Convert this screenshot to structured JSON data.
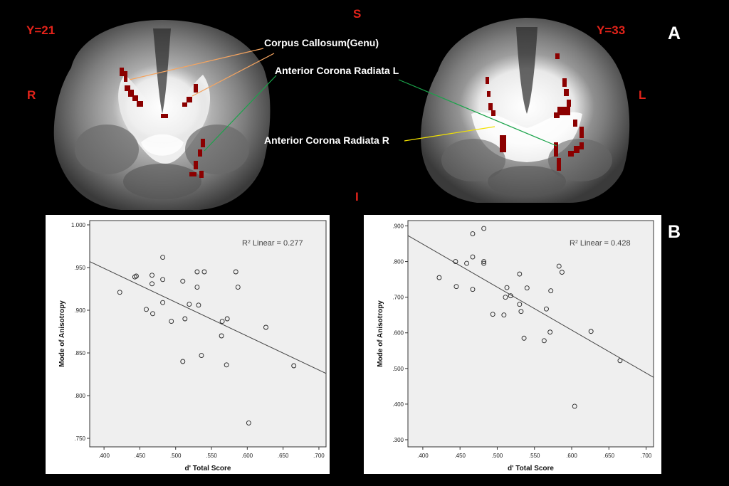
{
  "mri": {
    "y_left": "Y=21",
    "y_right": "Y=33",
    "superior": "S",
    "inferior": "I",
    "right": "R",
    "left": "L",
    "panel_a": "A",
    "panel_b": "B",
    "annotations": [
      "Corpus Callosum(Genu)",
      "Anterior Corona Radiata L",
      "Anterior Corona Radiata R"
    ]
  },
  "chart_data": [
    {
      "type": "scatter",
      "xlabel": "d' Total Score",
      "ylabel": "Mode of Anisotropy",
      "xlim": [
        0.38,
        0.71
      ],
      "ylim": [
        0.74,
        1.005
      ],
      "xticks": [
        ".400",
        ".450",
        ".500",
        ".550",
        ".600",
        ".650",
        ".700"
      ],
      "xtick_values": [
        0.4,
        0.45,
        0.5,
        0.55,
        0.6,
        0.65,
        0.7
      ],
      "yticks": [
        "1.000",
        ".950",
        ".900",
        ".850",
        ".800",
        ".750"
      ],
      "ytick_values": [
        1.0,
        0.95,
        0.9,
        0.85,
        0.8,
        0.75
      ],
      "r2_label": "R",
      "r2_text": " Linear = 0.277",
      "fit": {
        "x1": 0.38,
        "y1": 0.957,
        "x2": 0.71,
        "y2": 0.826
      },
      "points": [
        [
          0.422,
          0.921
        ],
        [
          0.443,
          0.939
        ],
        [
          0.445,
          0.94
        ],
        [
          0.459,
          0.901
        ],
        [
          0.467,
          0.941
        ],
        [
          0.467,
          0.931
        ],
        [
          0.468,
          0.896
        ],
        [
          0.482,
          0.962
        ],
        [
          0.482,
          0.936
        ],
        [
          0.482,
          0.909
        ],
        [
          0.494,
          0.887
        ],
        [
          0.51,
          0.934
        ],
        [
          0.51,
          0.84
        ],
        [
          0.513,
          0.89
        ],
        [
          0.519,
          0.907
        ],
        [
          0.53,
          0.945
        ],
        [
          0.53,
          0.927
        ],
        [
          0.532,
          0.906
        ],
        [
          0.536,
          0.847
        ],
        [
          0.54,
          0.945
        ],
        [
          0.564,
          0.87
        ],
        [
          0.565,
          0.887
        ],
        [
          0.571,
          0.836
        ],
        [
          0.572,
          0.89
        ],
        [
          0.584,
          0.945
        ],
        [
          0.587,
          0.927
        ],
        [
          0.602,
          0.768
        ],
        [
          0.626,
          0.88
        ],
        [
          0.665,
          0.835
        ]
      ]
    },
    {
      "type": "scatter",
      "xlabel": "d' Total Score",
      "ylabel": "Mode of Anisotropy",
      "xlim": [
        0.38,
        0.71
      ],
      "ylim": [
        0.28,
        0.915
      ],
      "xticks": [
        ".400",
        ".450",
        ".500",
        ".550",
        ".600",
        ".650",
        ".700"
      ],
      "xtick_values": [
        0.4,
        0.45,
        0.5,
        0.55,
        0.6,
        0.65,
        0.7
      ],
      "yticks": [
        ".900",
        ".800",
        ".700",
        ".600",
        ".500",
        ".400",
        ".300"
      ],
      "ytick_values": [
        0.9,
        0.8,
        0.7,
        0.6,
        0.5,
        0.4,
        0.3
      ],
      "r2_label": "R",
      "r2_text": " Linear = 0.428",
      "fit": {
        "x1": 0.38,
        "y1": 0.873,
        "x2": 0.71,
        "y2": 0.475
      },
      "points": [
        [
          0.422,
          0.755
        ],
        [
          0.444,
          0.8
        ],
        [
          0.445,
          0.73
        ],
        [
          0.459,
          0.795
        ],
        [
          0.467,
          0.878
        ],
        [
          0.467,
          0.813
        ],
        [
          0.467,
          0.722
        ],
        [
          0.482,
          0.893
        ],
        [
          0.482,
          0.8
        ],
        [
          0.482,
          0.795
        ],
        [
          0.494,
          0.652
        ],
        [
          0.509,
          0.65
        ],
        [
          0.511,
          0.7
        ],
        [
          0.513,
          0.727
        ],
        [
          0.518,
          0.704
        ],
        [
          0.53,
          0.765
        ],
        [
          0.53,
          0.68
        ],
        [
          0.532,
          0.66
        ],
        [
          0.536,
          0.585
        ],
        [
          0.54,
          0.726
        ],
        [
          0.563,
          0.578
        ],
        [
          0.566,
          0.667
        ],
        [
          0.571,
          0.602
        ],
        [
          0.572,
          0.718
        ],
        [
          0.583,
          0.787
        ],
        [
          0.587,
          0.77
        ],
        [
          0.604,
          0.394
        ],
        [
          0.626,
          0.604
        ],
        [
          0.665,
          0.522
        ]
      ]
    }
  ]
}
